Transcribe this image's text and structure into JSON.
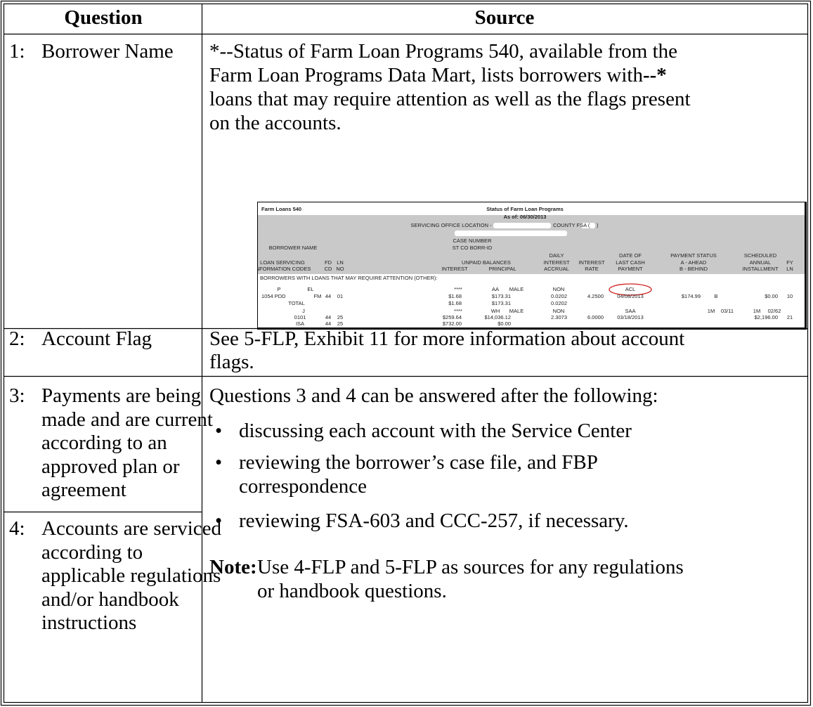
{
  "header": {
    "question": "Question",
    "source": "Source"
  },
  "rows": [
    {
      "number": "1:",
      "question": "Borrower Name",
      "source": {
        "lines": [
          "*--Status of Farm Loan Programs 540, available from the",
          "Farm Loan Programs Data Mart, lists borrowers with",
          "loans that may require attention as well as the flags present",
          "on the accounts."
        ],
        "bold_marker": "--*"
      },
      "report": {
        "lines": [
          [
            "Farm Loans 540",
            "Status of Farm Loan Programs"
          ],
          [
            "As of: 06/30/2013"
          ],
          [
            "SERVICING OFFICE LOCATION -",
            "COUNTY FSA (",
            ")"
          ],
          [
            "CASE NUMBER"
          ],
          [
            "BORROWER NAME",
            "ST CO BORR-ID"
          ],
          [
            "DAILY",
            "DATE OF",
            "PAYMENT STATUS",
            "SCHEDULED"
          ],
          [
            "LOAN SERVICING",
            "FD",
            "LN",
            "UNPAID BALANCES",
            "INTEREST",
            "INTEREST",
            "LAST CASH",
            "A - AHEAD",
            "ANNUAL",
            "FY"
          ],
          [
            "INFORMATION CODES",
            "CD",
            "NO",
            "INTEREST",
            "PRINCIPAL",
            "ACCRUAL",
            "RATE",
            "PAYMENT",
            "B - BEHIND",
            "INSTALLMENT",
            "LN"
          ],
          [
            "BORROWERS WITH LOANS THAT MAY REQUIRE ATTENTION (OTHER):"
          ],
          [
            "P",
            "EL",
            "****",
            "AA",
            "MALE",
            "NON",
            "ACL"
          ],
          [
            "1054 PDD",
            "FM",
            "44",
            "01",
            "$1.68",
            "$173.31",
            "0.0202",
            "4.2500",
            "04/08/2013",
            "$174.99",
            "B",
            "$0.00",
            "10"
          ],
          [
            "TOTAL",
            "$1.68",
            "$173.31",
            "0.0202"
          ],
          [
            "J",
            "****",
            "WH",
            "MALE",
            "NON",
            "SAA",
            "1M",
            "03/11",
            "1M",
            "02/62"
          ],
          [
            "0101",
            "44",
            "25",
            "$259.64",
            "$14,036.12",
            "2.3073",
            "6.0000",
            "03/18/2013",
            "$2,196.00",
            "21"
          ],
          [
            "ISA",
            "44",
            "25",
            "$732.00",
            "$0.00"
          ]
        ]
      }
    },
    {
      "number": "2:",
      "question": "Account Flag",
      "source": {
        "lines": [
          "See 5-FLP, Exhibit 11 for more information about account",
          "flags."
        ]
      }
    },
    {
      "number": "3:",
      "question": [
        "Payments are being",
        "made and are current",
        "according to an",
        "approved plan or",
        "agreement"
      ]
    },
    {
      "number": "4:",
      "question": [
        "Accounts are serviced",
        "according to",
        "applicable regulations",
        "and/or handbook",
        "instructions"
      ]
    }
  ],
  "shared_source": {
    "intro": "Questions 3 and 4 can be answered after the following:",
    "bullets": [
      [
        "discussing each account with the Service Center"
      ],
      [
        "reviewing the borrower’s case file, and FBP",
        "correspondence"
      ],
      [
        "reviewing FSA-603 and CCC-257, if necessary."
      ]
    ],
    "note": {
      "label": "Note:",
      "lines": [
        "Use 4-FLP and 5-FLP as sources for any regulations",
        "or handbook questions."
      ]
    }
  }
}
